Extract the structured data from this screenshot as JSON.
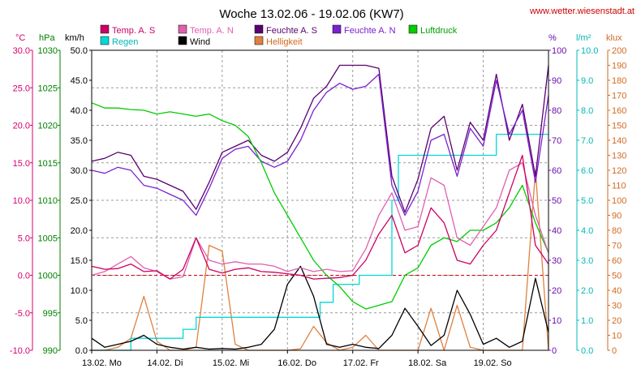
{
  "chart_data": {
    "type": "line",
    "title": "Woche 13.02.06 - 19.02.06 (KW7)",
    "source": "www.wetter.wiesenstadt.at",
    "grid": true,
    "x_ticks": [
      "13.02. Mo",
      "14.02. Di",
      "15.02. Mi",
      "16.02. Do",
      "17.02. Fr",
      "18.02. Sa",
      "19.02. So"
    ],
    "x_range_days": [
      0,
      7
    ],
    "axes": {
      "temp": {
        "unit": "°C",
        "min": -10,
        "max": 30,
        "step": 5,
        "decimals": 1,
        "color": "#d4006e"
      },
      "pressure": {
        "unit": "hPa",
        "min": 990,
        "max": 1030,
        "step": 5,
        "decimals": 0,
        "color": "#008000"
      },
      "wind": {
        "unit": "km/h",
        "min": 0,
        "max": 50,
        "step": 5,
        "decimals": 1,
        "color": "#000000"
      },
      "humidity": {
        "unit": "%",
        "min": 0,
        "max": 100,
        "step": 10,
        "decimals": 0,
        "color": "#6a0dad"
      },
      "rain": {
        "unit": "l/m²",
        "min": 0,
        "max": 10,
        "step": 1,
        "decimals": 1,
        "color": "#00c8c8"
      },
      "light": {
        "unit": "klux",
        "min": 0,
        "max": 200,
        "step": 10,
        "decimals": 0,
        "color": "#d2691e"
      }
    },
    "reference_line": {
      "axis": "temp",
      "value": 0,
      "color": "#d00000"
    },
    "series": [
      {
        "name": "Temp. A. S",
        "axis": "temp",
        "color": "#cc0066",
        "x": [
          0,
          0.2,
          0.4,
          0.6,
          0.8,
          1.0,
          1.2,
          1.4,
          1.6,
          1.8,
          2.0,
          2.2,
          2.4,
          2.6,
          2.8,
          3.0,
          3.2,
          3.4,
          3.6,
          3.8,
          4.0,
          4.2,
          4.4,
          4.6,
          4.8,
          5.0,
          5.2,
          5.4,
          5.6,
          5.8,
          6.0,
          6.2,
          6.4,
          6.6,
          6.8,
          7.0
        ],
        "y": [
          1.2,
          0.8,
          0.9,
          1.5,
          0.5,
          0.6,
          -0.5,
          0.8,
          5.0,
          0.8,
          0.3,
          0.8,
          1.0,
          0.5,
          0.4,
          0.2,
          0.0,
          -0.5,
          -0.4,
          -0.3,
          0.0,
          2.0,
          5.5,
          8.0,
          3.0,
          4.0,
          9.0,
          7.0,
          2.0,
          1.5,
          4.0,
          6.0,
          11.0,
          16.0,
          4.0,
          1.5
        ]
      },
      {
        "name": "Temp. A. N",
        "axis": "temp",
        "color": "#e060b0",
        "x": [
          0,
          0.2,
          0.4,
          0.6,
          0.8,
          1.0,
          1.2,
          1.4,
          1.6,
          1.8,
          2.0,
          2.2,
          2.4,
          2.6,
          2.8,
          3.0,
          3.2,
          3.4,
          3.6,
          3.8,
          4.0,
          4.2,
          4.4,
          4.6,
          4.8,
          5.0,
          5.2,
          5.4,
          5.6,
          5.8,
          6.0,
          6.2,
          6.4,
          6.6,
          6.8,
          7.0
        ],
        "y": [
          0.0,
          0.5,
          1.5,
          2.5,
          1.0,
          0.5,
          -0.5,
          -0.2,
          5.0,
          2.0,
          1.5,
          1.8,
          1.5,
          1.5,
          1.2,
          0.5,
          1.0,
          0.5,
          0.8,
          0.5,
          0.6,
          3.5,
          8.0,
          11.0,
          6.0,
          6.5,
          13.0,
          12.0,
          5.0,
          4.0,
          6.5,
          9.0,
          14.0,
          15.0,
          8.0,
          3.0
        ]
      },
      {
        "name": "Feuchte A. S",
        "axis": "humidity",
        "color": "#5a0070",
        "x": [
          0,
          0.2,
          0.4,
          0.6,
          0.8,
          1.0,
          1.2,
          1.4,
          1.6,
          1.8,
          2.0,
          2.2,
          2.4,
          2.6,
          2.8,
          3.0,
          3.2,
          3.4,
          3.6,
          3.8,
          4.0,
          4.2,
          4.4,
          4.6,
          4.8,
          5.0,
          5.2,
          5.4,
          5.6,
          5.8,
          6.0,
          6.2,
          6.4,
          6.6,
          6.8,
          7.0
        ],
        "y": [
          63,
          64,
          66,
          65,
          58,
          57,
          55,
          53,
          47,
          56,
          66,
          68,
          70,
          65,
          63,
          66,
          74,
          84,
          88,
          95,
          95,
          95,
          94,
          58,
          46,
          57,
          74,
          78,
          60,
          76,
          70,
          92,
          70,
          82,
          58,
          95
        ]
      },
      {
        "name": "Feuchte A. N",
        "axis": "humidity",
        "color": "#7a20d0",
        "x": [
          0,
          0.2,
          0.4,
          0.6,
          0.8,
          1.0,
          1.2,
          1.4,
          1.6,
          1.8,
          2.0,
          2.2,
          2.4,
          2.6,
          2.8,
          3.0,
          3.2,
          3.4,
          3.6,
          3.8,
          4.0,
          4.2,
          4.4,
          4.6,
          4.8,
          5.0,
          5.2,
          5.4,
          5.6,
          5.8,
          6.0,
          6.2,
          6.4,
          6.6,
          6.8,
          7.0
        ],
        "y": [
          60,
          59,
          61,
          60,
          55,
          54,
          52,
          50,
          45,
          54,
          64,
          67,
          68,
          63,
          61,
          63,
          70,
          80,
          86,
          89,
          87,
          88,
          92,
          55,
          45,
          53,
          70,
          72,
          58,
          74,
          68,
          90,
          72,
          80,
          56,
          85
        ]
      },
      {
        "name": "Luftdruck",
        "axis": "pressure",
        "color": "#00cc00",
        "x": [
          0,
          0.2,
          0.4,
          0.6,
          0.8,
          1.0,
          1.2,
          1.4,
          1.6,
          1.8,
          2.0,
          2.2,
          2.4,
          2.6,
          2.8,
          3.0,
          3.2,
          3.4,
          3.6,
          3.8,
          4.0,
          4.2,
          4.4,
          4.6,
          4.8,
          5.0,
          5.2,
          5.4,
          5.6,
          5.8,
          6.0,
          6.2,
          6.4,
          6.6,
          6.8,
          7.0
        ],
        "y": [
          1023,
          1022.3,
          1022.3,
          1022.1,
          1022,
          1021.5,
          1021.8,
          1021.5,
          1021.2,
          1021.5,
          1020.6,
          1020,
          1018.5,
          1015,
          1011,
          1008,
          1005,
          1002,
          1000,
          998.5,
          996.5,
          995.5,
          996,
          996.5,
          1000,
          1001,
          1004,
          1005,
          1004.5,
          1006,
          1006,
          1007,
          1009,
          1012,
          1007,
          1003
        ]
      },
      {
        "name": "Regen",
        "axis": "rain",
        "color": "#00d8d8",
        "x": [
          0,
          0.6,
          0.6,
          1.4,
          1.4,
          1.6,
          1.6,
          3.5,
          3.5,
          3.7,
          3.7,
          4.1,
          4.1,
          4.6,
          4.6,
          4.7,
          4.7,
          4.8,
          4.8,
          6.2,
          6.2,
          7.0
        ],
        "y": [
          0,
          0,
          0.4,
          0.4,
          0.7,
          0.7,
          1.1,
          1.1,
          1.6,
          1.6,
          2.2,
          2.2,
          2.5,
          2.5,
          5.0,
          5.0,
          6.5,
          6.5,
          6.5,
          6.5,
          7.2,
          7.2
        ]
      },
      {
        "name": "Wind",
        "axis": "wind",
        "color": "#000000",
        "x": [
          0,
          0.2,
          0.4,
          0.6,
          0.8,
          1.0,
          1.2,
          1.4,
          1.6,
          1.8,
          2.0,
          2.2,
          2.4,
          2.6,
          2.8,
          3.0,
          3.2,
          3.4,
          3.6,
          3.8,
          4.0,
          4.2,
          4.4,
          4.6,
          4.8,
          5.0,
          5.2,
          5.4,
          5.6,
          5.8,
          6.0,
          6.2,
          6.4,
          6.6,
          6.8,
          7.0
        ],
        "y": [
          2.0,
          0.5,
          1.0,
          1.5,
          2.5,
          1.0,
          0.5,
          0.2,
          0.5,
          0.2,
          0.3,
          0.2,
          0.5,
          1.0,
          3.5,
          11.0,
          14.0,
          9.0,
          1.0,
          0.5,
          1.0,
          0.5,
          0.3,
          2.5,
          7.0,
          4.0,
          0.8,
          2.5,
          10.0,
          6.0,
          1.0,
          2.0,
          0.5,
          1.5,
          12.0,
          3.0
        ]
      },
      {
        "name": "Helligkeit",
        "axis": "light",
        "color": "#e08040",
        "x": [
          0,
          0.2,
          0.4,
          0.6,
          0.8,
          1.0,
          1.2,
          1.4,
          1.6,
          1.8,
          2.0,
          2.2,
          2.4,
          2.6,
          2.8,
          3.0,
          3.2,
          3.4,
          3.6,
          3.8,
          4.0,
          4.2,
          4.4,
          4.6,
          4.8,
          5.0,
          5.2,
          5.4,
          5.6,
          5.8,
          6.0,
          6.2,
          6.4,
          6.6,
          6.8,
          7.0
        ],
        "y": [
          0,
          0,
          2,
          8,
          36,
          6,
          0,
          0,
          2,
          70,
          66,
          4,
          0,
          0,
          0,
          0,
          1,
          16,
          5,
          0,
          2,
          10,
          0,
          0,
          0,
          0,
          28,
          0,
          30,
          2,
          0,
          0,
          0,
          0,
          120,
          0
        ]
      }
    ]
  }
}
